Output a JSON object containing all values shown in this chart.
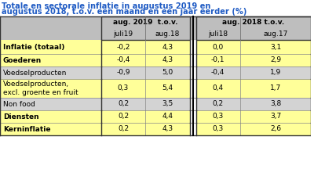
{
  "title": "Totale en sectorale inflatie in augustus 2019 en\naugustu 2018, t.o.v. een maand en een jaar eerder (%)",
  "title_line1": "Totale en sectorale inflatie in augustus 2019 en",
  "title_line2": "augustus 2018, t.o.v. een maand en een jaar eerder (%)",
  "col_headers_row1": [
    "aug. 2019  t.o.v.",
    "aug. 2018 t.o.v."
  ],
  "col_headers_row2": [
    "juli19",
    "aug.18",
    "juli18",
    "aug.17"
  ],
  "rows": [
    {
      "label": "Inflatie (totaal)",
      "bold": true,
      "values": [
        "-0,2",
        "4,3",
        "0,0",
        "3,1"
      ],
      "bg": "yellow"
    },
    {
      "label": "Goederen",
      "bold": true,
      "values": [
        "-0,4",
        "4,3",
        "-0,1",
        "2,9"
      ],
      "bg": "yellow"
    },
    {
      "label": "Voedselproducten",
      "bold": false,
      "values": [
        "-0,9",
        "5,0",
        "-0,4",
        "1,9"
      ],
      "bg": "gray"
    },
    {
      "label": "Voedselproducten,\nexcl. groente en fruit",
      "bold": false,
      "values": [
        "0,3",
        "5,4",
        "0,4",
        "1,7"
      ],
      "bg": "yellow"
    },
    {
      "label": "Non food",
      "bold": false,
      "values": [
        "0,2",
        "3,5",
        "0,2",
        "3,8"
      ],
      "bg": "gray"
    },
    {
      "label": "Diensten",
      "bold": true,
      "values": [
        "0,2",
        "4,4",
        "0,3",
        "3,7"
      ],
      "bg": "yellow"
    },
    {
      "label": "Kerninflatie",
      "bold": true,
      "values": [
        "0,2",
        "4,3",
        "0,3",
        "2,6"
      ],
      "bg": "yellow"
    }
  ],
  "bg_yellow": "#FFFF99",
  "bg_gray": "#D3D3D3",
  "bg_header": "#C0C0C0",
  "bg_white": "#F0F0F0",
  "title_color": "#1F5BC4",
  "border_color": "#000000",
  "text_color": "#000000"
}
